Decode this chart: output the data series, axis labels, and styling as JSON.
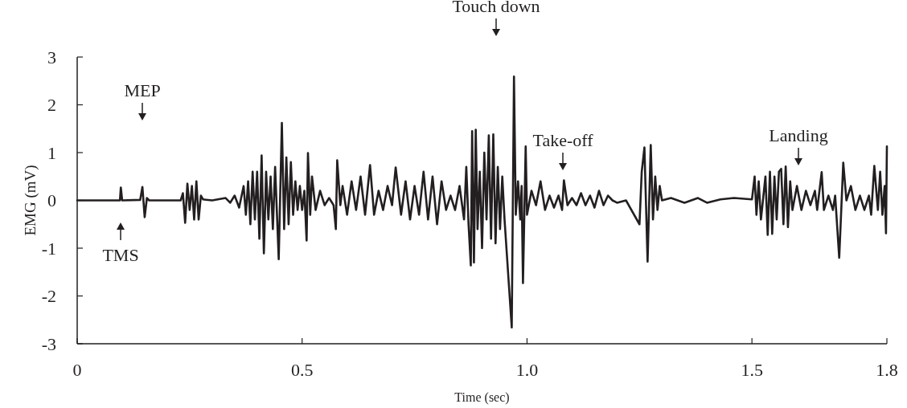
{
  "chart_data": {
    "type": "line",
    "xlabel": "Time (sec)",
    "ylabel": "EMG (mV)",
    "xlim": [
      0,
      1.8
    ],
    "ylim": [
      -3,
      3
    ],
    "xticks": [
      0,
      0.5,
      {
        "value": 1,
        "label": "1.0"
      },
      1.5,
      1.8
    ],
    "yticks": [
      -3,
      -2,
      -1,
      0,
      1,
      2,
      3
    ],
    "grid": false,
    "marker": "none",
    "line_style": "solid",
    "annotations": [
      "TMS",
      "MEP",
      "Touch down",
      "Take-off",
      "Landing"
    ],
    "series": [
      {
        "color": "#231f20",
        "x": [
          0,
          0.05,
          0.095,
          0.097,
          0.1,
          0.14,
          0.145,
          0.15,
          0.155,
          0.16,
          0.23,
          0.235,
          0.24,
          0.245,
          0.25,
          0.255,
          0.26,
          0.265,
          0.27,
          0.275,
          0.28,
          0.3,
          0.33,
          0.34,
          0.35,
          0.36,
          0.37,
          0.375,
          0.38,
          0.385,
          0.39,
          0.395,
          0.4,
          0.405,
          0.41,
          0.415,
          0.42,
          0.425,
          0.43,
          0.435,
          0.44,
          0.448,
          0.455,
          0.46,
          0.465,
          0.47,
          0.475,
          0.48,
          0.485,
          0.49,
          0.495,
          0.5,
          0.505,
          0.51,
          0.513,
          0.518,
          0.522,
          0.53,
          0.54,
          0.55,
          0.56,
          0.57,
          0.575,
          0.578,
          0.585,
          0.59,
          0.6,
          0.61,
          0.62,
          0.63,
          0.64,
          0.651,
          0.66,
          0.67,
          0.68,
          0.69,
          0.7,
          0.708,
          0.72,
          0.73,
          0.74,
          0.75,
          0.76,
          0.77,
          0.78,
          0.79,
          0.8,
          0.81,
          0.82,
          0.83,
          0.84,
          0.85,
          0.86,
          0.865,
          0.87,
          0.875,
          0.878,
          0.882,
          0.886,
          0.89,
          0.895,
          0.9,
          0.905,
          0.91,
          0.915,
          0.92,
          0.925,
          0.93,
          0.935,
          0.94,
          0.945,
          0.95,
          0.966,
          0.971,
          0.975,
          0.98,
          0.985,
          0.988,
          0.991,
          0.997,
          1.0,
          1.01,
          1.02,
          1.03,
          1.04,
          1.05,
          1.06,
          1.07,
          1.078,
          1.082,
          1.09,
          1.1,
          1.11,
          1.12,
          1.13,
          1.14,
          1.15,
          1.16,
          1.17,
          1.18,
          1.19,
          1.2,
          1.22,
          1.25,
          1.255,
          1.261,
          1.268,
          1.275,
          1.28,
          1.285,
          1.29,
          1.295,
          1.3,
          1.32,
          1.35,
          1.38,
          1.4,
          1.43,
          1.46,
          1.5,
          1.506,
          1.51,
          1.515,
          1.52,
          1.53,
          1.535,
          1.54,
          1.545,
          1.55,
          1.555,
          1.56,
          1.565,
          1.57,
          1.575,
          1.58,
          1.585,
          1.59,
          1.6,
          1.61,
          1.62,
          1.63,
          1.64,
          1.645,
          1.655,
          1.66,
          1.67,
          1.68,
          1.685,
          1.694,
          1.703,
          1.71,
          1.72,
          1.73,
          1.74,
          1.75,
          1.76,
          1.765,
          1.772,
          1.78,
          1.785,
          1.79,
          1.795,
          1.798,
          1.8
        ],
        "values": [
          0,
          0,
          0,
          0.27,
          0,
          0.01,
          0.28,
          -0.35,
          0.05,
          0,
          0,
          0.15,
          -0.47,
          0.35,
          -0.2,
          0.3,
          -0.4,
          0.4,
          -0.4,
          0.1,
          0.02,
          0,
          0.05,
          -0.05,
          0.1,
          -0.15,
          0.3,
          -0.3,
          0.4,
          -0.5,
          0.6,
          -0.4,
          0.6,
          -0.8,
          0.94,
          -1.11,
          0.6,
          -0.4,
          0.5,
          -0.6,
          0.7,
          -1.23,
          1.62,
          -0.6,
          0.9,
          -0.5,
          0.8,
          -0.3,
          0.4,
          -0.2,
          0.3,
          -0.2,
          0.2,
          -0.84,
          0.99,
          -0.3,
          0.5,
          -0.2,
          0.2,
          -0.1,
          0.05,
          -0.1,
          -0.6,
          0.84,
          -0.1,
          0.3,
          -0.3,
          0.4,
          -0.2,
          0.5,
          -0.3,
          0.74,
          -0.3,
          0.2,
          -0.2,
          0.3,
          -0.1,
          0.69,
          -0.3,
          0.4,
          -0.4,
          0.3,
          -0.3,
          0.6,
          -0.4,
          0.5,
          -0.5,
          0.4,
          -0.2,
          0.1,
          -0.2,
          0.3,
          -0.4,
          0.7,
          -0.5,
          -1.36,
          1.45,
          -1.3,
          1.48,
          -0.6,
          0.6,
          -1,
          1,
          -0.4,
          1.36,
          -0.8,
          1.38,
          -0.9,
          0.7,
          -0.6,
          0.5,
          -0.4,
          -2.66,
          2.59,
          -0.3,
          0.4,
          -0.4,
          0.3,
          -1.73,
          1.13,
          -0.3,
          0.2,
          -0.1,
          0.4,
          -0.2,
          0.1,
          -0.15,
          0.1,
          -0.2,
          0.42,
          -0.1,
          0.05,
          -0.1,
          0.15,
          -0.1,
          0.1,
          -0.15,
          0.2,
          -0.1,
          0.1,
          0,
          -0.05,
          0,
          -0.5,
          0.6,
          1.11,
          -1.28,
          1.16,
          -0.4,
          0.5,
          -0.2,
          0.3,
          0,
          0.05,
          -0.05,
          0.05,
          -0.05,
          0.02,
          0.05,
          0.02,
          0.5,
          -0.3,
          0.4,
          -0.4,
          0.5,
          -0.72,
          0.6,
          -0.7,
          0.5,
          -0.4,
          0.6,
          0.66,
          -0.5,
          0.71,
          -0.56,
          0.4,
          -0.2,
          0.3,
          -0.2,
          0.2,
          -0.1,
          0.2,
          -0.2,
          0.59,
          -0.2,
          0.1,
          -0.2,
          0.1,
          -1.2,
          0.79,
          0,
          0.3,
          -0.2,
          0.1,
          -0.2,
          0.1,
          -0.3,
          0.72,
          -0.2,
          0.6,
          -0.3,
          0.3,
          -0.69,
          1.13
        ]
      }
    ]
  }
}
